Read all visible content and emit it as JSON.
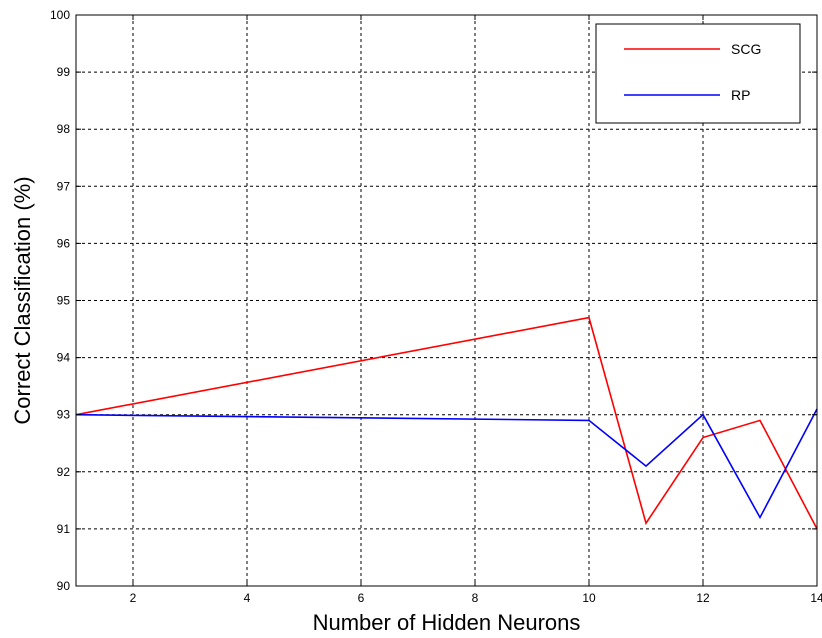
{
  "chart_data": {
    "type": "line",
    "title": "",
    "xlabel": "Number of Hidden Neurons",
    "ylabel": "Correct Classification (%)",
    "xlim": [
      1,
      14
    ],
    "ylim": [
      90,
      100
    ],
    "x_ticks": [
      2,
      4,
      6,
      8,
      10,
      12,
      14
    ],
    "y_ticks": [
      90,
      91,
      92,
      93,
      94,
      95,
      96,
      97,
      98,
      99,
      100
    ],
    "grid": true,
    "legend_position": "top-right",
    "series": [
      {
        "name": "SCG",
        "color": "#ff0000",
        "x": [
          1,
          10,
          11,
          12,
          13,
          14
        ],
        "y": [
          93.0,
          94.7,
          91.1,
          92.6,
          92.9,
          91.0
        ]
      },
      {
        "name": "RP",
        "color": "#0000ff",
        "x": [
          1,
          10,
          11,
          12,
          13,
          14
        ],
        "y": [
          93.0,
          92.9,
          92.1,
          93.0,
          91.2,
          93.1
        ]
      }
    ]
  }
}
